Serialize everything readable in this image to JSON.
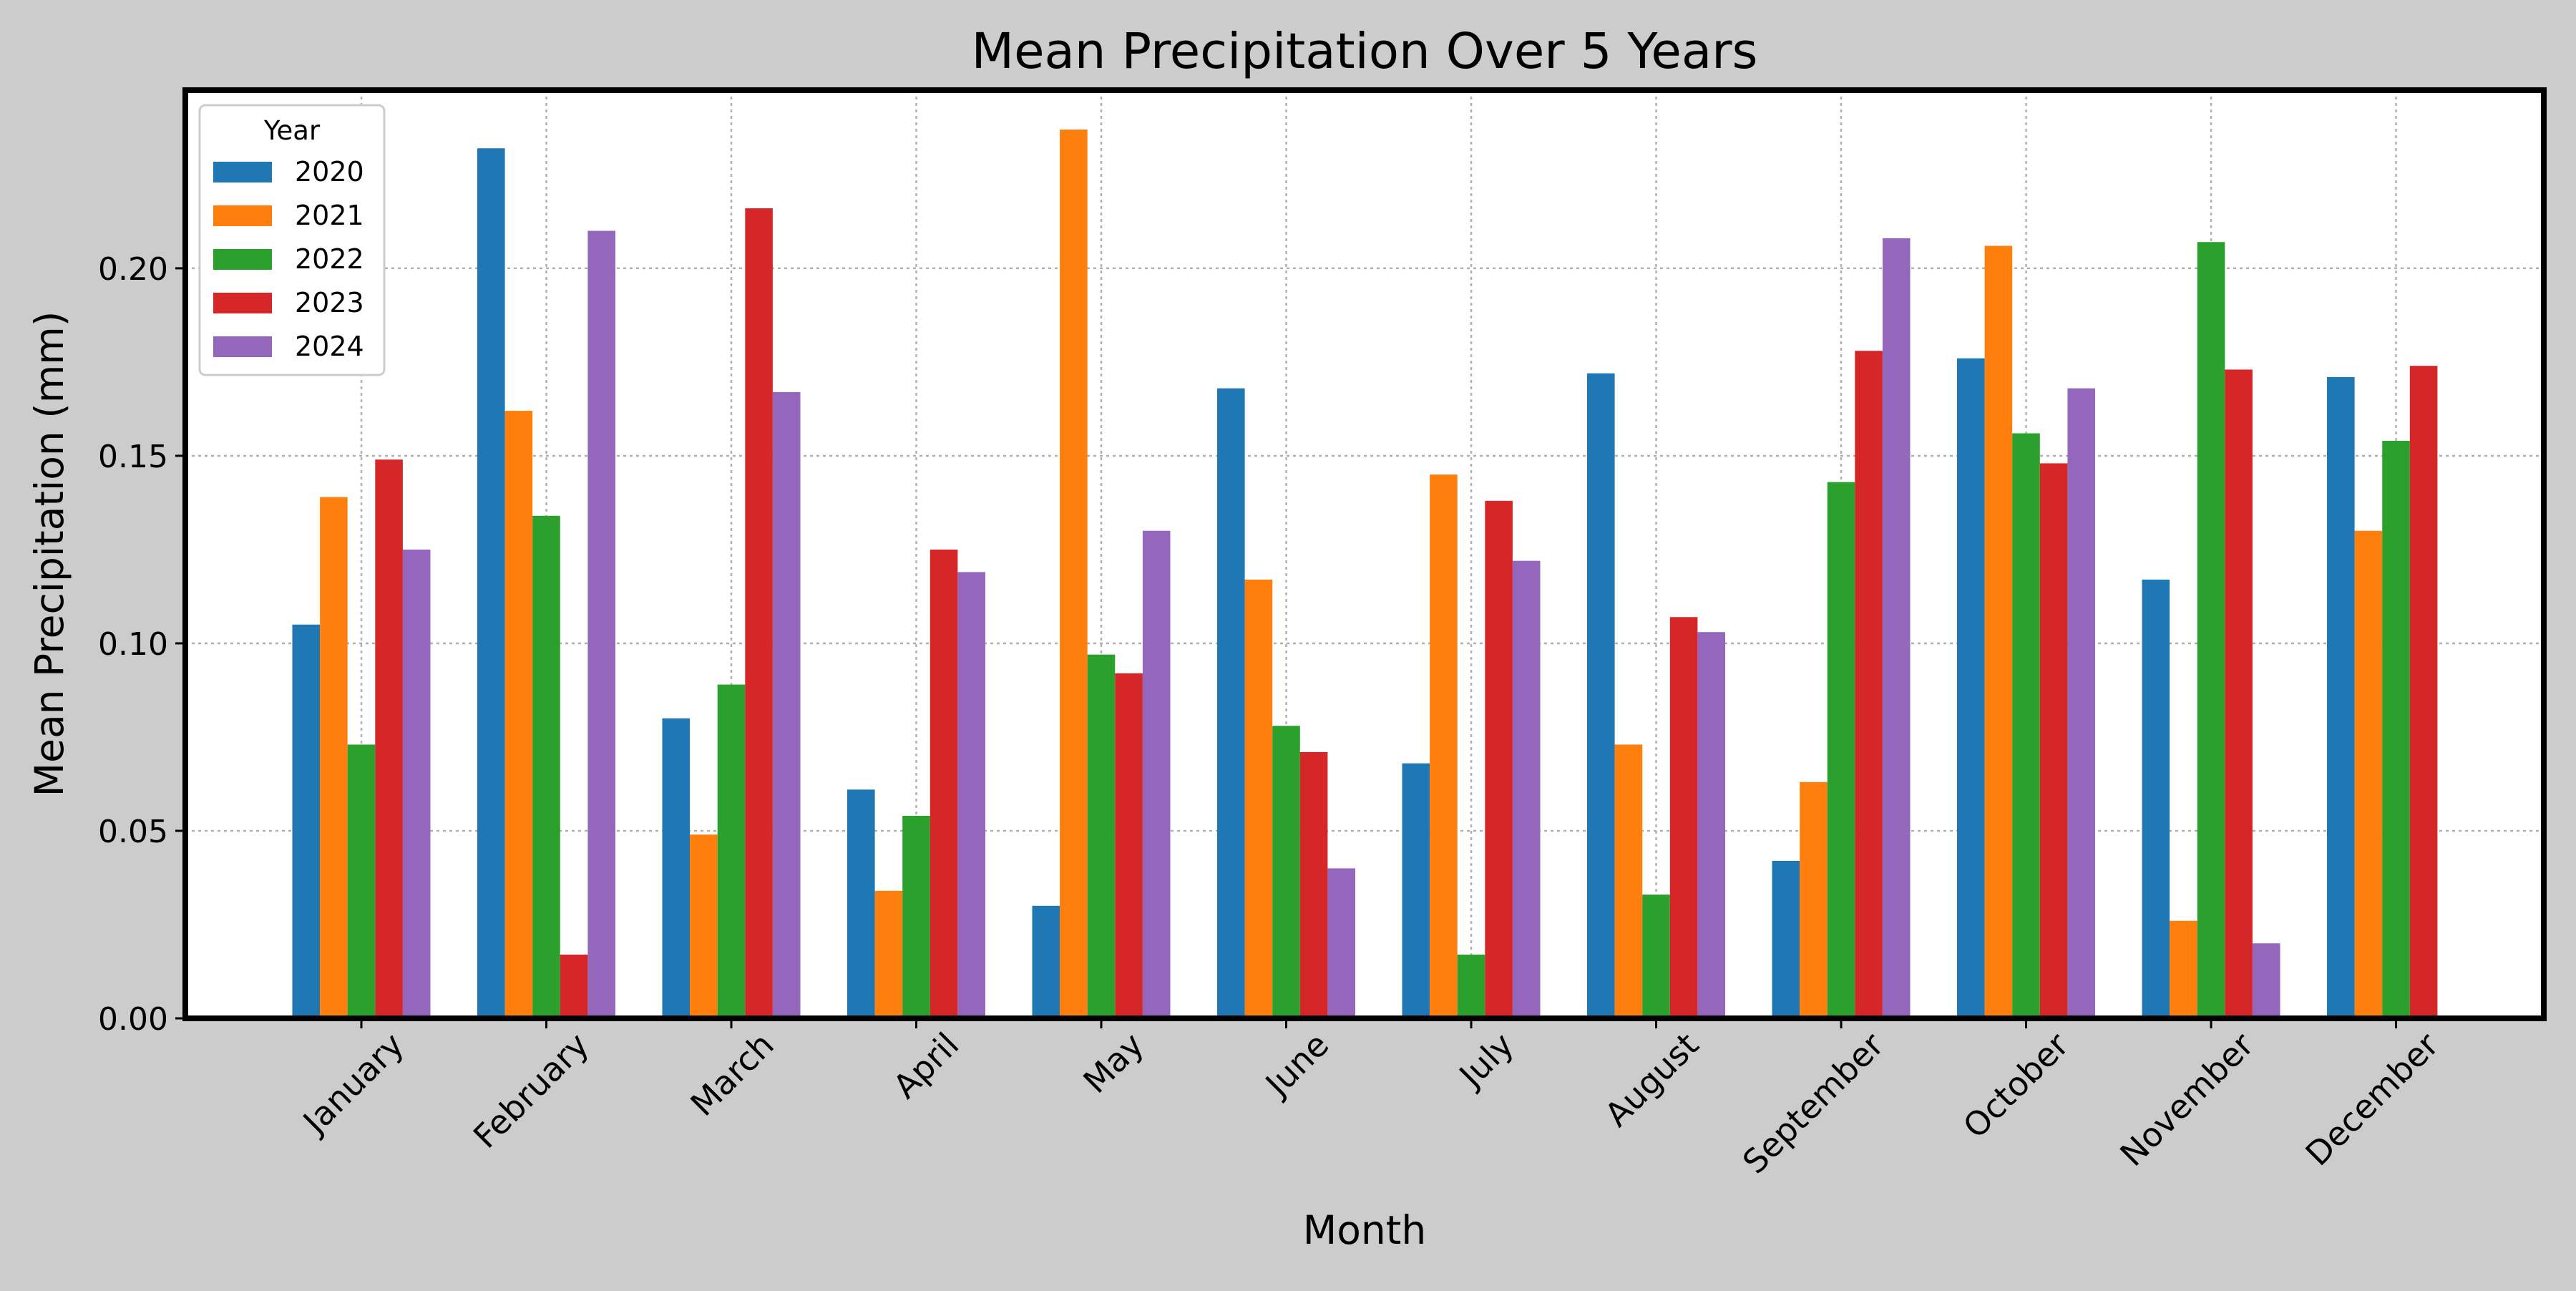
{
  "chart_data": {
    "type": "bar",
    "title": "Mean Precipitation Over 5 Years",
    "xlabel": "Month",
    "ylabel": "Mean Precipitation (mm)",
    "ylim": [
      0,
      0.2475
    ],
    "yticks": [
      0.0,
      0.05,
      0.1,
      0.15,
      0.2
    ],
    "ytick_labels": [
      "0.00",
      "0.05",
      "0.10",
      "0.15",
      "0.20"
    ],
    "grid": true,
    "legend_title": "Year",
    "legend_position": "top-left",
    "categories": [
      "January",
      "February",
      "March",
      "April",
      "May",
      "June",
      "July",
      "August",
      "September",
      "October",
      "November",
      "December"
    ],
    "series": [
      {
        "name": "2020",
        "color": "#1f77b4",
        "values": [
          0.105,
          0.232,
          0.08,
          0.061,
          0.03,
          0.168,
          0.068,
          0.172,
          0.042,
          0.176,
          0.117,
          0.171
        ]
      },
      {
        "name": "2021",
        "color": "#ff7f0e",
        "values": [
          0.139,
          0.162,
          0.049,
          0.034,
          0.237,
          0.117,
          0.145,
          0.073,
          0.063,
          0.206,
          0.026,
          0.13
        ]
      },
      {
        "name": "2022",
        "color": "#2ca02c",
        "values": [
          0.073,
          0.134,
          0.089,
          0.054,
          0.097,
          0.078,
          0.017,
          0.033,
          0.143,
          0.156,
          0.207,
          0.154
        ]
      },
      {
        "name": "2023",
        "color": "#d62728",
        "values": [
          0.149,
          0.017,
          0.216,
          0.125,
          0.092,
          0.071,
          0.138,
          0.107,
          0.178,
          0.148,
          0.173,
          0.174
        ]
      },
      {
        "name": "2024",
        "color": "#9467bd",
        "values": [
          0.125,
          0.21,
          0.167,
          0.119,
          0.13,
          0.04,
          0.122,
          0.103,
          0.208,
          0.168,
          0.02,
          null
        ]
      }
    ]
  }
}
